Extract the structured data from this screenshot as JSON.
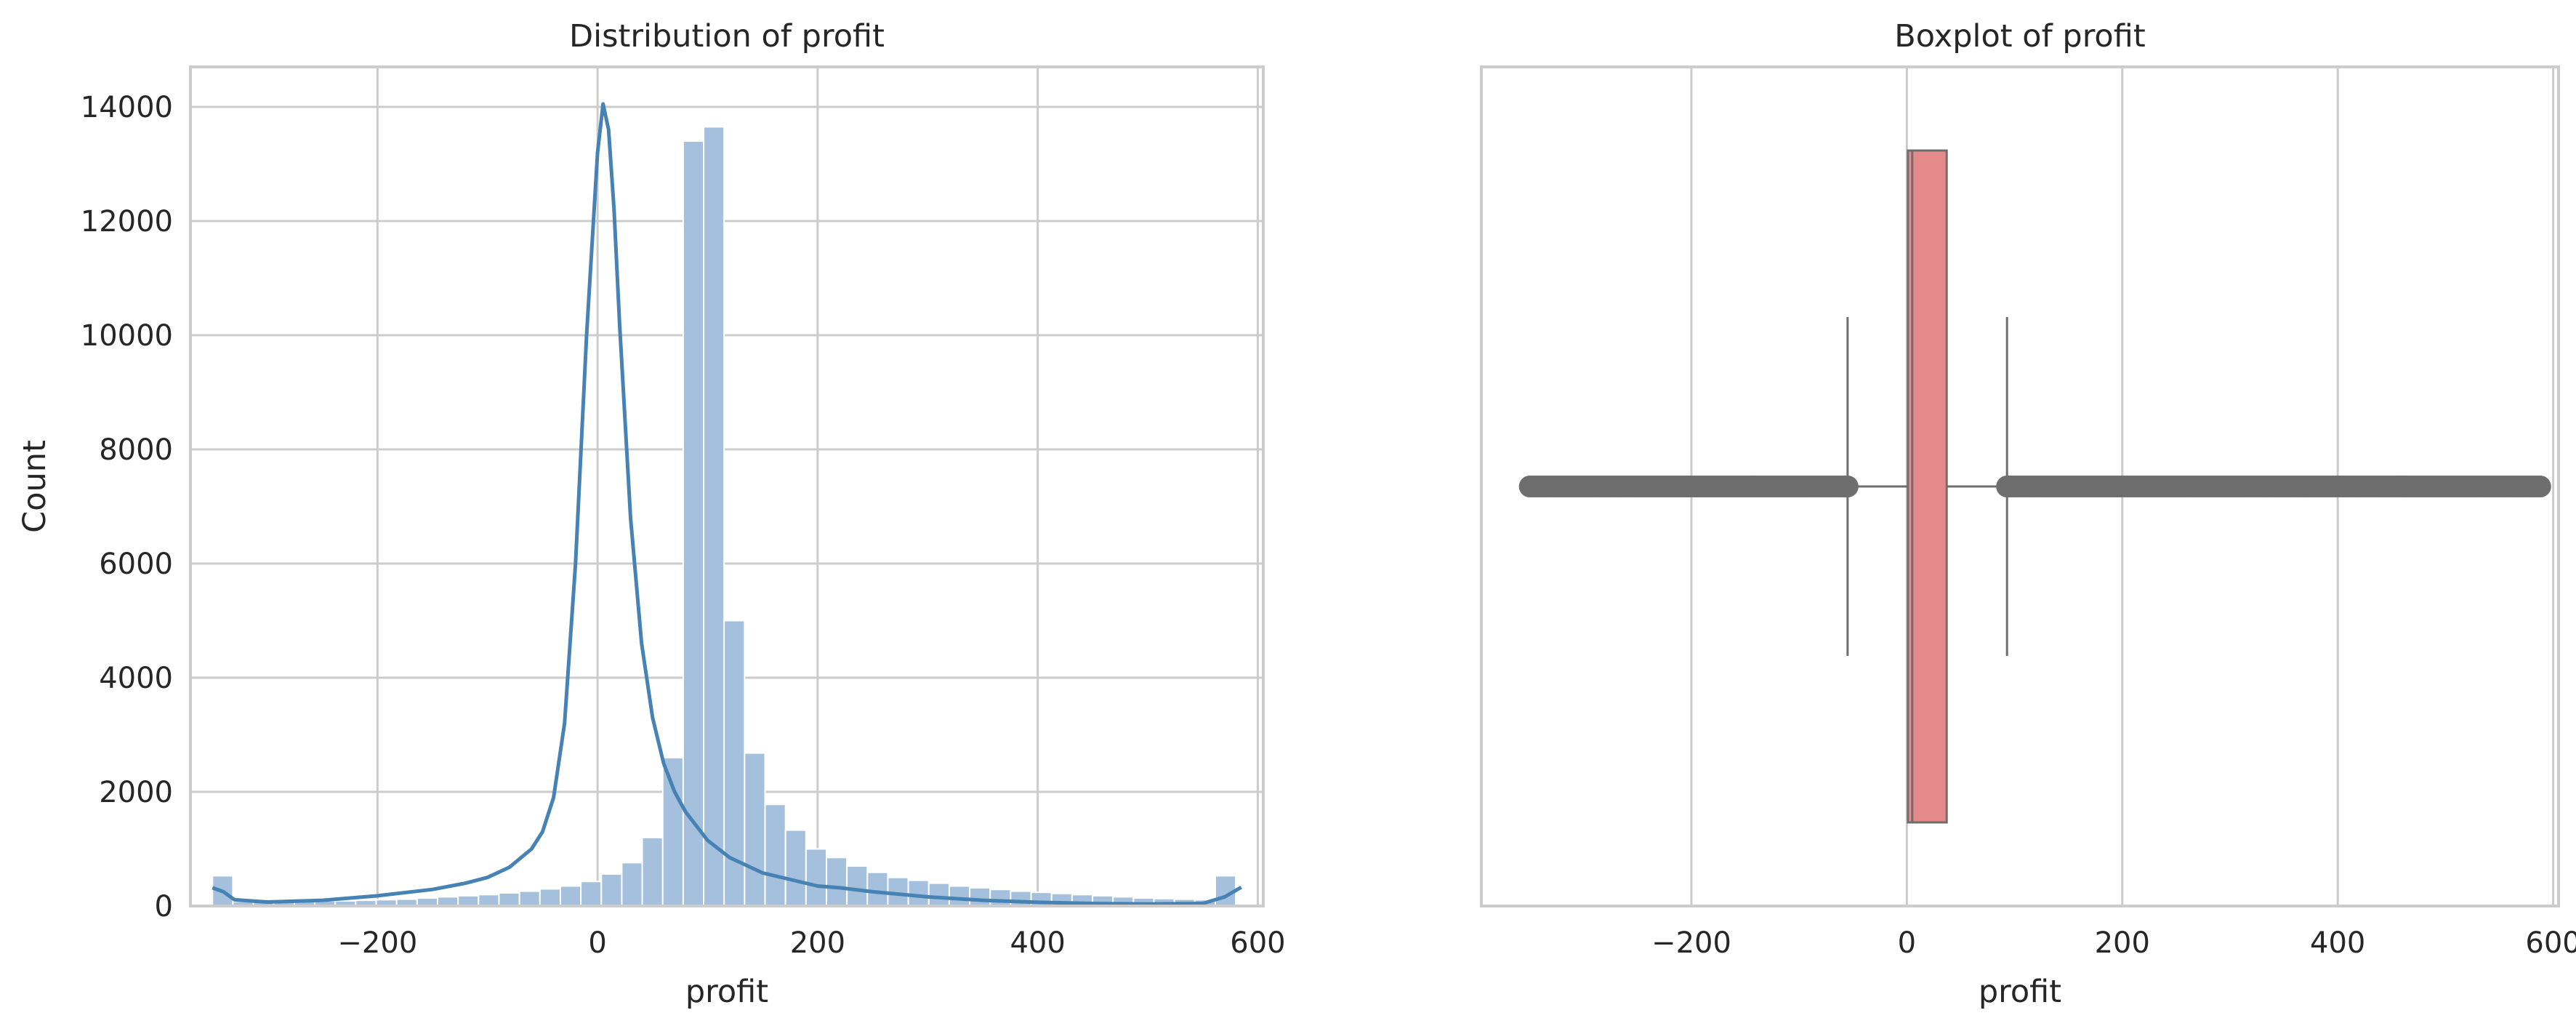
{
  "chart_data": [
    {
      "type": "bar",
      "title": "Distribution of profit",
      "xlabel": "profit",
      "ylabel": "Count",
      "xlim": [
        -370,
        605
      ],
      "ylim": [
        0,
        14700
      ],
      "grid": true,
      "xticks": [
        -200,
        0,
        200,
        400,
        600
      ],
      "xtick_labels": [
        "−200",
        "0",
        "200",
        "400",
        "600"
      ],
      "yticks": [
        0,
        2000,
        4000,
        6000,
        8000,
        10000,
        12000,
        14000
      ],
      "ytick_labels": [
        "0",
        "2000",
        "4000",
        "6000",
        "8000",
        "10000",
        "12000",
        "14000"
      ],
      "bar_color": "#a4c0dc",
      "bar_edge_color": "#ffffff",
      "kde_color": "#4682b4",
      "bins": {
        "start": -350,
        "width": 18.6,
        "counts": [
          530,
          80,
          70,
          70,
          80,
          90,
          90,
          100,
          110,
          120,
          140,
          160,
          180,
          200,
          230,
          260,
          300,
          350,
          430,
          560,
          760,
          1200,
          2600,
          13400,
          13650,
          5000,
          2680,
          1780,
          1330,
          1000,
          850,
          700,
          590,
          500,
          450,
          400,
          350,
          320,
          290,
          260,
          240,
          220,
          200,
          180,
          160,
          140,
          130,
          120,
          110,
          530
        ]
      },
      "kde": {
        "x": [
          -350,
          -340,
          -330,
          -300,
          -250,
          -200,
          -150,
          -120,
          -100,
          -80,
          -60,
          -50,
          -40,
          -30,
          -20,
          -10,
          0,
          5,
          10,
          15,
          20,
          30,
          40,
          50,
          60,
          70,
          80,
          100,
          120,
          150,
          200,
          220,
          250,
          300,
          350,
          400,
          450,
          500,
          550,
          570,
          585
        ],
        "y": [
          320,
          250,
          110,
          70,
          100,
          180,
          290,
          400,
          500,
          680,
          1000,
          1300,
          1900,
          3200,
          6000,
          10000,
          13200,
          14050,
          13600,
          12200,
          10200,
          6800,
          4600,
          3300,
          2500,
          2000,
          1650,
          1150,
          850,
          580,
          350,
          320,
          250,
          160,
          100,
          65,
          45,
          35,
          45,
          160,
          330
        ]
      }
    },
    {
      "type": "box",
      "title": "Boxplot of profit",
      "xlabel": "profit",
      "xlim": [
        -395,
        605
      ],
      "grid": true,
      "xticks": [
        -200,
        0,
        200,
        400,
        600
      ],
      "xtick_labels": [
        "−200",
        "0",
        "200",
        "400",
        "600"
      ],
      "box_color": "#e48a8a",
      "line_color": "#6e6e6e",
      "q1": 1,
      "median": 5,
      "q3": 37,
      "whisker_low": -55,
      "whisker_high": 93,
      "outliers_low": [
        -350,
        -55
      ],
      "outliers_high": [
        93,
        588
      ]
    }
  ]
}
